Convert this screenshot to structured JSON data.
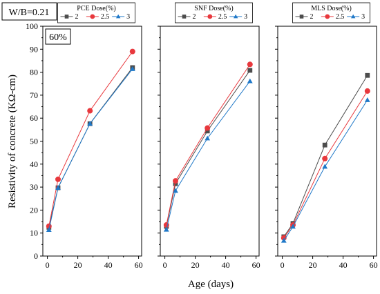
{
  "chart_data": {
    "type": "line",
    "top_label": "W/B=0.21",
    "xlabel": "Age (days)",
    "ylabel": "Resistivity of concrete (KΩ-cm)",
    "xlim": [
      -3,
      62
    ],
    "ylim": [
      0,
      100
    ],
    "x_ticks": [
      "0",
      "20",
      "40",
      "60"
    ],
    "y_ticks": [
      "0",
      "10",
      "20",
      "30",
      "40",
      "50",
      "60",
      "70",
      "80",
      "90",
      "100"
    ],
    "grid": false,
    "x": [
      1,
      7,
      28,
      56
    ],
    "series_style": [
      {
        "color": "#4d4d4d",
        "marker": "square"
      },
      {
        "color": "#e8383d",
        "marker": "circle"
      },
      {
        "color": "#1f78c8",
        "marker": "triangle"
      }
    ],
    "panels": [
      {
        "annotation": "60%",
        "legend_title": "PCE Dose(%)",
        "series": [
          {
            "name": "2",
            "values": [
              12.5,
              29.7,
              57.6,
              82.0
            ]
          },
          {
            "name": "2.5",
            "values": [
              13.0,
              33.4,
              63.2,
              89.0
            ]
          },
          {
            "name": "3",
            "values": [
              11.4,
              29.7,
              57.6,
              81.4
            ]
          }
        ]
      },
      {
        "annotation": "",
        "legend_title": "SNF Dose(%)",
        "series": [
          {
            "name": "2",
            "values": [
              12.9,
              31.5,
              54.4,
              80.8
            ]
          },
          {
            "name": "2.5",
            "values": [
              13.5,
              32.7,
              55.7,
              83.4
            ]
          },
          {
            "name": "3",
            "values": [
              11.5,
              28.4,
              51.2,
              76.1
            ]
          }
        ]
      },
      {
        "annotation": "",
        "legend_title": "MLS Dose(%)",
        "series": [
          {
            "name": "2",
            "values": [
              8.4,
              14.2,
              48.3,
              78.6
            ]
          },
          {
            "name": "2.5",
            "values": [
              7.9,
              13.5,
              42.4,
              71.8
            ]
          },
          {
            "name": "3",
            "values": [
              6.7,
              12.8,
              38.9,
              67.9
            ]
          }
        ]
      }
    ]
  }
}
